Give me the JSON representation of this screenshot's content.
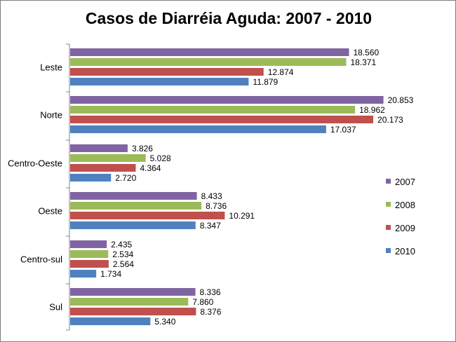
{
  "chart_data": {
    "type": "bar",
    "orientation": "horizontal",
    "title": "Casos de Diarréia Aguda: 2007 - 2010",
    "xlabel": "",
    "ylabel": "",
    "categories": [
      "Leste",
      "Norte",
      "Centro-Oeste",
      "Oeste",
      "Centro-sul",
      "Sul"
    ],
    "series": [
      {
        "name": "2007",
        "color": "#8064A2",
        "values": [
          18560,
          20853,
          3826,
          8433,
          2435,
          8336
        ],
        "labels": [
          "18.560",
          "20.853",
          "3.826",
          "8.433",
          "2.435",
          "8.336"
        ]
      },
      {
        "name": "2008",
        "color": "#9BBB59",
        "values": [
          18371,
          18962,
          5028,
          8736,
          2534,
          7860
        ],
        "labels": [
          "18.371",
          "18.962",
          "5.028",
          "8.736",
          "2.534",
          "7.860"
        ]
      },
      {
        "name": "2009",
        "color": "#C0504D",
        "values": [
          12874,
          20173,
          4364,
          10291,
          2564,
          8376
        ],
        "labels": [
          "12.874",
          "20.173",
          "4.364",
          "10.291",
          "2.564",
          "8.376"
        ]
      },
      {
        "name": "2010",
        "color": "#4F81BD",
        "values": [
          11879,
          17037,
          2720,
          8347,
          1734,
          5340
        ],
        "labels": [
          "11.879",
          "17.037",
          "2.720",
          "8.347",
          "1.734",
          "5.340"
        ]
      }
    ],
    "xlim": [
      0,
      22000
    ],
    "grid": false,
    "legend_position": "right"
  }
}
